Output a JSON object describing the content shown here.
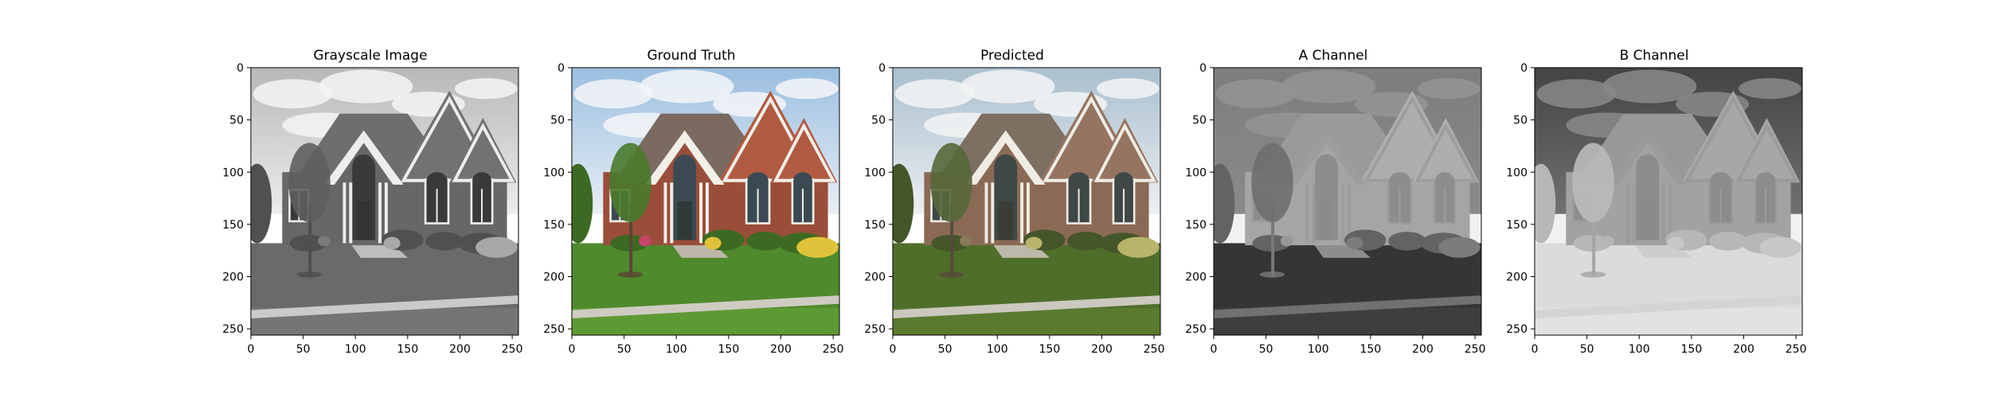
{
  "figure": {
    "panels": [
      {
        "title": "Grayscale Image",
        "mode": "gray"
      },
      {
        "title": "Ground Truth",
        "mode": "color"
      },
      {
        "title": "Predicted",
        "mode": "muted"
      },
      {
        "title": "A Channel",
        "mode": "achannel"
      },
      {
        "title": "B Channel",
        "mode": "bchannel"
      }
    ],
    "x_ticks": [
      "0",
      "50",
      "100",
      "150",
      "200",
      "250"
    ],
    "y_ticks": [
      "0",
      "50",
      "100",
      "150",
      "200",
      "250"
    ],
    "x_tick_values": [
      0,
      50,
      100,
      150,
      200,
      250
    ],
    "y_tick_values": [
      0,
      50,
      100,
      150,
      200,
      250
    ],
    "pixel_extent": [
      0,
      256
    ]
  }
}
